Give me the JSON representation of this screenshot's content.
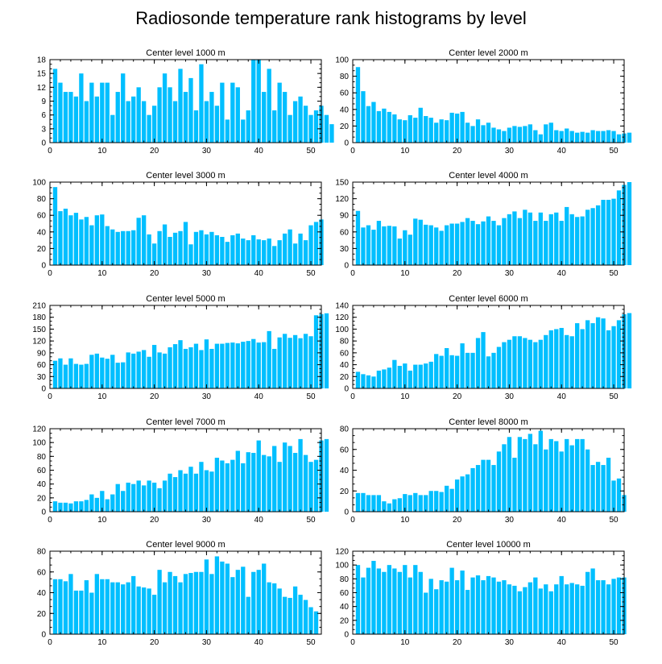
{
  "page_title": "Radiosonde temperature rank histograms by level",
  "chart_data": [
    {
      "type": "bar",
      "title": "Center level 1000 m",
      "xlim": [
        0,
        52
      ],
      "ylim": [
        0,
        18
      ],
      "xticks": [
        0,
        10,
        20,
        30,
        40,
        50
      ],
      "yticks": [
        0,
        3,
        6,
        9,
        12,
        15,
        18
      ],
      "values": [
        16,
        13,
        11,
        11,
        10,
        15,
        9,
        13,
        10,
        13,
        13,
        6,
        11,
        15,
        9,
        10,
        12,
        9,
        6,
        8,
        12,
        15,
        12,
        9,
        16,
        11,
        14,
        7,
        17,
        9,
        11,
        8,
        13,
        5,
        13,
        12,
        5,
        7,
        18,
        18,
        11,
        16,
        7,
        13,
        11,
        6,
        9,
        10,
        8,
        6,
        7,
        8,
        6,
        4
      ]
    },
    {
      "type": "bar",
      "title": "Center level 2000 m",
      "xlim": [
        0,
        52
      ],
      "ylim": [
        0,
        100
      ],
      "xticks": [
        0,
        10,
        20,
        30,
        40,
        50
      ],
      "yticks": [
        0,
        20,
        40,
        60,
        80,
        100
      ],
      "values": [
        91,
        62,
        44,
        49,
        38,
        41,
        37,
        34,
        28,
        27,
        33,
        30,
        42,
        32,
        30,
        24,
        28,
        27,
        36,
        35,
        37,
        24,
        20,
        28,
        21,
        24,
        18,
        16,
        14,
        18,
        20,
        19,
        20,
        22,
        15,
        10,
        22,
        24,
        15,
        14,
        17,
        14,
        12,
        13,
        12,
        15,
        14,
        14,
        15,
        14,
        10,
        11,
        12
      ]
    },
    {
      "type": "bar",
      "title": "Center level 3000 m",
      "xlim": [
        0,
        52
      ],
      "ylim": [
        0,
        100
      ],
      "xticks": [
        0,
        10,
        20,
        30,
        40,
        50
      ],
      "yticks": [
        0,
        20,
        40,
        60,
        80,
        100
      ],
      "values": [
        94,
        65,
        68,
        60,
        63,
        55,
        58,
        48,
        60,
        61,
        47,
        43,
        40,
        41,
        41,
        42,
        57,
        60,
        37,
        26,
        41,
        49,
        34,
        39,
        41,
        52,
        25,
        40,
        42,
        37,
        40,
        36,
        34,
        28,
        36,
        38,
        32,
        30,
        36,
        31,
        30,
        32,
        23,
        30,
        38,
        43,
        26,
        38,
        30,
        48,
        52,
        55
      ]
    },
    {
      "type": "bar",
      "title": "Center level 4000 m",
      "xlim": [
        0,
        52
      ],
      "ylim": [
        0,
        150
      ],
      "xticks": [
        0,
        10,
        20,
        30,
        40,
        50
      ],
      "yticks": [
        0,
        30,
        60,
        90,
        120,
        150
      ],
      "values": [
        98,
        68,
        72,
        64,
        80,
        70,
        71,
        70,
        48,
        63,
        55,
        84,
        82,
        73,
        72,
        68,
        62,
        72,
        75,
        75,
        78,
        85,
        80,
        74,
        79,
        88,
        80,
        72,
        85,
        92,
        97,
        85,
        100,
        95,
        80,
        95,
        80,
        92,
        95,
        80,
        105,
        92,
        87,
        88,
        100,
        103,
        108,
        118,
        118,
        120,
        135,
        145,
        150
      ]
    },
    {
      "type": "bar",
      "title": "Center level 5000 m",
      "xlim": [
        0,
        52
      ],
      "ylim": [
        0,
        210
      ],
      "xticks": [
        0,
        10,
        20,
        30,
        40,
        50
      ],
      "yticks": [
        0,
        30,
        60,
        90,
        120,
        150,
        180,
        210
      ],
      "values": [
        70,
        76,
        60,
        76,
        62,
        60,
        62,
        85,
        88,
        78,
        75,
        85,
        65,
        66,
        91,
        88,
        93,
        97,
        80,
        110,
        91,
        88,
        104,
        112,
        122,
        100,
        104,
        113,
        97,
        124,
        100,
        113,
        113,
        115,
        116,
        114,
        118,
        120,
        125,
        116,
        117,
        145,
        100,
        129,
        138,
        128,
        135,
        127,
        138,
        132,
        185,
        188,
        190
      ]
    },
    {
      "type": "bar",
      "title": "Center level 6000 m",
      "xlim": [
        0,
        52
      ],
      "ylim": [
        0,
        140
      ],
      "xticks": [
        0,
        10,
        20,
        30,
        40,
        50
      ],
      "yticks": [
        0,
        20,
        40,
        60,
        80,
        100,
        120,
        140
      ],
      "values": [
        28,
        24,
        22,
        20,
        30,
        32,
        35,
        48,
        38,
        42,
        30,
        40,
        40,
        42,
        45,
        58,
        55,
        68,
        56,
        55,
        76,
        60,
        60,
        85,
        95,
        54,
        60,
        70,
        78,
        82,
        88,
        88,
        85,
        82,
        78,
        82,
        90,
        98,
        100,
        102,
        90,
        88,
        110,
        100,
        115,
        110,
        120,
        118,
        98,
        105,
        115,
        125,
        127
      ]
    },
    {
      "type": "bar",
      "title": "Center level 7000 m",
      "xlim": [
        0,
        52
      ],
      "ylim": [
        0,
        120
      ],
      "xticks": [
        0,
        10,
        20,
        30,
        40,
        50
      ],
      "yticks": [
        0,
        20,
        40,
        60,
        80,
        100,
        120
      ],
      "values": [
        15,
        13,
        13,
        12,
        15,
        15,
        17,
        25,
        20,
        30,
        18,
        25,
        40,
        30,
        42,
        40,
        45,
        38,
        45,
        42,
        34,
        45,
        55,
        50,
        60,
        55,
        65,
        55,
        72,
        60,
        58,
        78,
        74,
        70,
        75,
        88,
        70,
        86,
        85,
        103,
        82,
        80,
        95,
        72,
        100,
        95,
        85,
        105,
        82,
        72,
        75,
        103,
        105
      ]
    },
    {
      "type": "bar",
      "title": "Center level 8000 m",
      "xlim": [
        0,
        52
      ],
      "ylim": [
        0,
        80
      ],
      "xticks": [
        0,
        10,
        20,
        30,
        40,
        50
      ],
      "yticks": [
        0,
        20,
        40,
        60,
        80
      ],
      "values": [
        18,
        18,
        16,
        16,
        16,
        10,
        8,
        12,
        13,
        17,
        16,
        18,
        16,
        16,
        20,
        20,
        19,
        25,
        22,
        31,
        34,
        36,
        42,
        45,
        50,
        50,
        45,
        58,
        65,
        72,
        52,
        72,
        70,
        75,
        65,
        78,
        60,
        70,
        68,
        58,
        70,
        64,
        70,
        70,
        60,
        45,
        48,
        45,
        52,
        30,
        32,
        16
      ]
    },
    {
      "type": "bar",
      "title": "Center level 9000 m",
      "xlim": [
        0,
        52
      ],
      "ylim": [
        0,
        80
      ],
      "xticks": [
        0,
        10,
        20,
        30,
        40,
        50
      ],
      "yticks": [
        0,
        20,
        40,
        60,
        80
      ],
      "values": [
        53,
        53,
        51,
        58,
        42,
        42,
        52,
        40,
        58,
        53,
        53,
        50,
        50,
        48,
        50,
        56,
        46,
        45,
        44,
        38,
        62,
        50,
        60,
        56,
        50,
        58,
        59,
        60,
        60,
        72,
        58,
        75,
        70,
        68,
        55,
        62,
        65,
        36,
        60,
        62,
        68,
        50,
        49,
        44,
        36,
        35,
        46,
        38,
        33,
        26,
        22
      ]
    },
    {
      "type": "bar",
      "title": "Center level 10000 m",
      "xlim": [
        0,
        52
      ],
      "ylim": [
        0,
        120
      ],
      "xticks": [
        0,
        10,
        20,
        30,
        40,
        50
      ],
      "yticks": [
        0,
        20,
        40,
        60,
        80,
        100,
        120
      ],
      "values": [
        100,
        82,
        96,
        106,
        95,
        90,
        100,
        95,
        90,
        100,
        82,
        100,
        90,
        60,
        80,
        65,
        78,
        76,
        96,
        78,
        92,
        64,
        82,
        85,
        78,
        84,
        82,
        76,
        78,
        72,
        70,
        62,
        68,
        75,
        82,
        66,
        72,
        62,
        72,
        84,
        72,
        74,
        72,
        70,
        90,
        95,
        78,
        78,
        72,
        80,
        82,
        82
      ]
    }
  ]
}
